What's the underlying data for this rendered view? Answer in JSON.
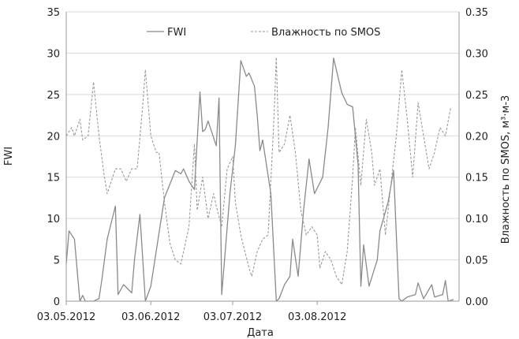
{
  "chart_data": {
    "type": "line",
    "xlabel": "Дата",
    "ylabel_left": "FWI",
    "ylabel_right": "Влажность по SMOS, м³·м-3",
    "x_range": [
      "2012-05-03",
      "2012-09-24"
    ],
    "ylim_left": [
      0,
      35
    ],
    "ylim_right": [
      0,
      0.35
    ],
    "x_ticks": [
      "03.05.2012",
      "03.06.2012",
      "03.07.2012",
      "03.08.2012"
    ],
    "y_ticks_left": [
      "0",
      "5",
      "10",
      "15",
      "20",
      "25",
      "30",
      "35"
    ],
    "y_ticks_right": [
      "0.00",
      "0.05",
      "0.10",
      "0.15",
      "0.20",
      "0.25",
      "0.30",
      "0.35"
    ],
    "legend_position": "top-center",
    "grid": "horizontal",
    "series": [
      {
        "name": "FWI",
        "axis": "left",
        "style": "solid",
        "color": "#8a8a8a",
        "points": [
          [
            "2012-05-03",
            4.5
          ],
          [
            "2012-05-04",
            8.5
          ],
          [
            "2012-05-06",
            7.5
          ],
          [
            "2012-05-08",
            0.0
          ],
          [
            "2012-05-09",
            0.7
          ],
          [
            "2012-05-10",
            0.0
          ],
          [
            "2012-05-13",
            0.0
          ],
          [
            "2012-05-15",
            0.3
          ],
          [
            "2012-05-16",
            2.5
          ],
          [
            "2012-05-18",
            7.5
          ],
          [
            "2012-05-21",
            11.5
          ],
          [
            "2012-05-22",
            0.8
          ],
          [
            "2012-05-24",
            2.0
          ],
          [
            "2012-05-27",
            1.0
          ],
          [
            "2012-05-28",
            5.0
          ],
          [
            "2012-05-30",
            10.5
          ],
          [
            "2012-06-01",
            0.0
          ],
          [
            "2012-06-03",
            1.8
          ],
          [
            "2012-06-08",
            12.5
          ],
          [
            "2012-06-12",
            15.8
          ],
          [
            "2012-06-14",
            15.4
          ],
          [
            "2012-06-15",
            16.0
          ],
          [
            "2012-06-17",
            14.5
          ],
          [
            "2012-06-19",
            13.5
          ],
          [
            "2012-06-21",
            25.3
          ],
          [
            "2012-06-22",
            20.5
          ],
          [
            "2012-06-23",
            20.8
          ],
          [
            "2012-06-24",
            21.8
          ],
          [
            "2012-06-27",
            18.8
          ],
          [
            "2012-06-28",
            24.6
          ],
          [
            "2012-06-29",
            0.8
          ],
          [
            "2012-07-02",
            13.0
          ],
          [
            "2012-07-04",
            18.8
          ],
          [
            "2012-07-06",
            29.1
          ],
          [
            "2012-07-08",
            27.2
          ],
          [
            "2012-07-09",
            27.6
          ],
          [
            "2012-07-11",
            26.0
          ],
          [
            "2012-07-12",
            22.5
          ],
          [
            "2012-07-13",
            18.2
          ],
          [
            "2012-07-14",
            19.5
          ],
          [
            "2012-07-17",
            13.0
          ],
          [
            "2012-07-19",
            0.0
          ],
          [
            "2012-07-20",
            0.3
          ],
          [
            "2012-07-22",
            2.0
          ],
          [
            "2012-07-24",
            3.0
          ],
          [
            "2012-07-25",
            7.5
          ],
          [
            "2012-07-27",
            3.0
          ],
          [
            "2012-07-29",
            11.0
          ],
          [
            "2012-07-31",
            17.2
          ],
          [
            "2012-08-02",
            13.0
          ],
          [
            "2012-08-05",
            15.0
          ],
          [
            "2012-08-07",
            21.0
          ],
          [
            "2012-08-09",
            29.4
          ],
          [
            "2012-08-12",
            25.2
          ],
          [
            "2012-08-14",
            23.8
          ],
          [
            "2012-08-16",
            23.5
          ],
          [
            "2012-08-18",
            16.5
          ],
          [
            "2012-08-19",
            1.8
          ],
          [
            "2012-08-20",
            6.8
          ],
          [
            "2012-08-22",
            1.8
          ],
          [
            "2012-08-25",
            5.0
          ],
          [
            "2012-08-26",
            8.5
          ],
          [
            "2012-08-29",
            12.0
          ],
          [
            "2012-08-31",
            15.8
          ],
          [
            "2012-09-02",
            0.3
          ],
          [
            "2012-09-03",
            0.0
          ],
          [
            "2012-09-05",
            0.5
          ],
          [
            "2012-09-08",
            0.8
          ],
          [
            "2012-09-09",
            2.2
          ],
          [
            "2012-09-11",
            0.3
          ],
          [
            "2012-09-14",
            2.0
          ],
          [
            "2012-09-15",
            0.5
          ],
          [
            "2012-09-18",
            0.8
          ],
          [
            "2012-09-19",
            2.5
          ],
          [
            "2012-09-20",
            0.0
          ],
          [
            "2012-09-22",
            0.2
          ]
        ]
      },
      {
        "name": "Влажность по SMOS",
        "axis": "right",
        "style": "dashed",
        "color": "#9a9a9a",
        "points": [
          [
            "2012-05-03",
            0.2
          ],
          [
            "2012-05-05",
            0.21
          ],
          [
            "2012-05-06",
            0.2
          ],
          [
            "2012-05-08",
            0.22
          ],
          [
            "2012-05-09",
            0.195
          ],
          [
            "2012-05-11",
            0.2
          ],
          [
            "2012-05-13",
            0.265
          ],
          [
            "2012-05-15",
            0.2
          ],
          [
            "2012-05-17",
            0.15
          ],
          [
            "2012-05-18",
            0.13
          ],
          [
            "2012-05-21",
            0.16
          ],
          [
            "2012-05-23",
            0.16
          ],
          [
            "2012-05-25",
            0.145
          ],
          [
            "2012-05-27",
            0.16
          ],
          [
            "2012-05-29",
            0.16
          ],
          [
            "2012-05-31",
            0.235
          ],
          [
            "2012-06-01",
            0.28
          ],
          [
            "2012-06-03",
            0.2
          ],
          [
            "2012-06-05",
            0.18
          ],
          [
            "2012-06-06",
            0.18
          ],
          [
            "2012-06-08",
            0.12
          ],
          [
            "2012-06-10",
            0.07
          ],
          [
            "2012-06-12",
            0.05
          ],
          [
            "2012-06-14",
            0.045
          ],
          [
            "2012-06-17",
            0.09
          ],
          [
            "2012-06-19",
            0.19
          ],
          [
            "2012-06-20",
            0.11
          ],
          [
            "2012-06-22",
            0.15
          ],
          [
            "2012-06-24",
            0.1
          ],
          [
            "2012-06-26",
            0.13
          ],
          [
            "2012-06-27",
            0.115
          ],
          [
            "2012-06-29",
            0.09
          ],
          [
            "2012-07-01",
            0.16
          ],
          [
            "2012-07-03",
            0.175
          ],
          [
            "2012-07-04",
            0.12
          ],
          [
            "2012-07-06",
            0.08
          ],
          [
            "2012-07-09",
            0.04
          ],
          [
            "2012-07-10",
            0.03
          ],
          [
            "2012-07-12",
            0.06
          ],
          [
            "2012-07-14",
            0.075
          ],
          [
            "2012-07-16",
            0.08
          ],
          [
            "2012-07-18",
            0.21
          ],
          [
            "2012-07-19",
            0.295
          ],
          [
            "2012-07-20",
            0.18
          ],
          [
            "2012-07-22",
            0.19
          ],
          [
            "2012-07-24",
            0.225
          ],
          [
            "2012-07-26",
            0.18
          ],
          [
            "2012-07-28",
            0.11
          ],
          [
            "2012-07-30",
            0.08
          ],
          [
            "2012-08-01",
            0.09
          ],
          [
            "2012-08-03",
            0.08
          ],
          [
            "2012-08-04",
            0.04
          ],
          [
            "2012-08-06",
            0.06
          ],
          [
            "2012-08-08",
            0.05
          ],
          [
            "2012-08-10",
            0.03
          ],
          [
            "2012-08-12",
            0.02
          ],
          [
            "2012-08-14",
            0.06
          ],
          [
            "2012-08-16",
            0.15
          ],
          [
            "2012-08-17",
            0.21
          ],
          [
            "2012-08-19",
            0.14
          ],
          [
            "2012-08-21",
            0.22
          ],
          [
            "2012-08-23",
            0.18
          ],
          [
            "2012-08-24",
            0.14
          ],
          [
            "2012-08-26",
            0.16
          ],
          [
            "2012-08-28",
            0.08
          ],
          [
            "2012-08-30",
            0.14
          ],
          [
            "2012-09-01",
            0.2
          ],
          [
            "2012-09-03",
            0.28
          ],
          [
            "2012-09-05",
            0.22
          ],
          [
            "2012-09-07",
            0.15
          ],
          [
            "2012-09-09",
            0.24
          ],
          [
            "2012-09-11",
            0.2
          ],
          [
            "2012-09-13",
            0.16
          ],
          [
            "2012-09-15",
            0.18
          ],
          [
            "2012-09-17",
            0.21
          ],
          [
            "2012-09-19",
            0.2
          ],
          [
            "2012-09-21",
            0.235
          ]
        ]
      }
    ]
  }
}
